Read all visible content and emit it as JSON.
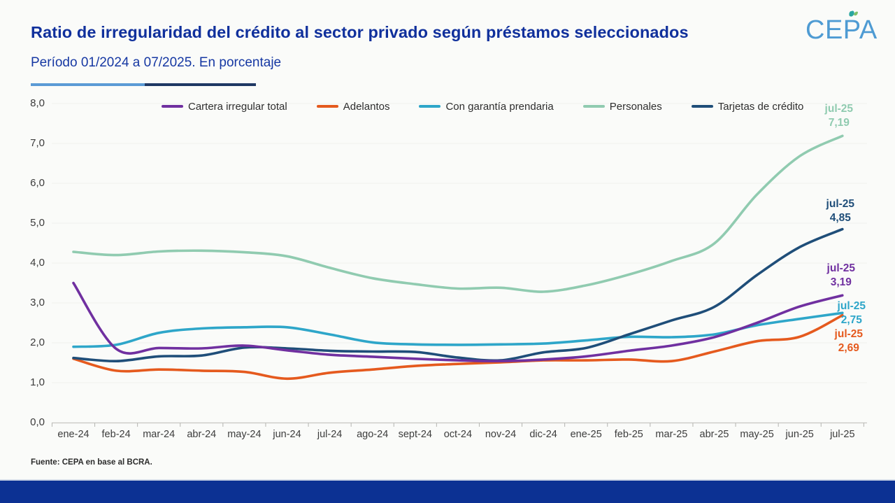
{
  "header": {
    "title": "Ratio de irregularidad del crédito al sector privado según préstamos seleccionados",
    "subtitle": "Período 01/2024 a 07/2025. En porcentaje",
    "logo_text": "CEPA"
  },
  "footer": {
    "source": "Fuente: CEPA en base al BCRA."
  },
  "colors": {
    "title_blue": "#10309c",
    "logo_blue": "#4e9bd3",
    "deco_light_blue": "#5b9bd5",
    "deco_dark_blue": "#1f3864",
    "footer_bar_blue": "#0c3193",
    "axis_text": "#3c3c3c",
    "background": "#fafbf9"
  },
  "chart_data": {
    "type": "line",
    "title": "Ratio de irregularidad del crédito al sector privado según préstamos seleccionados",
    "subtitle": "Período 01/2024 a 07/2025. En porcentaje",
    "ylabel": "",
    "xlabel": "",
    "ylim": [
      0,
      8
    ],
    "ytick_step": 1,
    "ytick_labels": [
      "0,0",
      "1,0",
      "2,0",
      "3,0",
      "4,0",
      "5,0",
      "6,0",
      "7,0",
      "8,0"
    ],
    "grid": "faint-horizontal",
    "legend_position": "top",
    "categories": [
      "ene-24",
      "feb-24",
      "mar-24",
      "abr-24",
      "may-24",
      "jun-24",
      "jul-24",
      "ago-24",
      "sept-24",
      "oct-24",
      "nov-24",
      "dic-24",
      "ene-25",
      "feb-25",
      "mar-25",
      "abr-25",
      "may-25",
      "jun-25",
      "jul-25"
    ],
    "series": [
      {
        "name": "Cartera irregular total",
        "color": "#7030a0",
        "values": [
          3.5,
          1.85,
          1.87,
          1.86,
          1.93,
          1.81,
          1.7,
          1.65,
          1.6,
          1.56,
          1.54,
          1.58,
          1.66,
          1.8,
          1.93,
          2.14,
          2.5,
          2.91,
          3.19
        ],
        "end_label": {
          "date": "jul-25",
          "value": "3,19"
        }
      },
      {
        "name": "Adelantos",
        "color": "#e55a1e",
        "values": [
          1.6,
          1.3,
          1.33,
          1.3,
          1.27,
          1.1,
          1.25,
          1.33,
          1.42,
          1.47,
          1.51,
          1.56,
          1.56,
          1.58,
          1.54,
          1.78,
          2.04,
          2.15,
          2.69
        ],
        "end_label": {
          "date": "jul-25",
          "value": "2,69"
        }
      },
      {
        "name": "Con garantía prendaria",
        "color": "#2ea6c9",
        "values": [
          1.9,
          1.95,
          2.25,
          2.36,
          2.39,
          2.39,
          2.21,
          2.01,
          1.96,
          1.95,
          1.96,
          1.98,
          2.06,
          2.15,
          2.14,
          2.21,
          2.44,
          2.6,
          2.75
        ],
        "end_label": {
          "date": "jul-25",
          "value": "2,75"
        }
      },
      {
        "name": "Personales",
        "color": "#90cbb0",
        "values": [
          4.28,
          4.2,
          4.29,
          4.31,
          4.27,
          4.17,
          3.88,
          3.62,
          3.47,
          3.36,
          3.38,
          3.28,
          3.44,
          3.71,
          4.05,
          4.49,
          5.72,
          6.68,
          7.19
        ],
        "end_label": {
          "date": "jul-25",
          "value": "7,19"
        }
      },
      {
        "name": "Tarjetas de crédito",
        "color": "#1f4e79",
        "values": [
          1.62,
          1.54,
          1.66,
          1.68,
          1.88,
          1.86,
          1.8,
          1.78,
          1.77,
          1.63,
          1.56,
          1.76,
          1.87,
          2.21,
          2.56,
          2.9,
          3.7,
          4.4,
          4.85
        ],
        "end_label": {
          "date": "jul-25",
          "value": "4,85"
        }
      }
    ]
  }
}
